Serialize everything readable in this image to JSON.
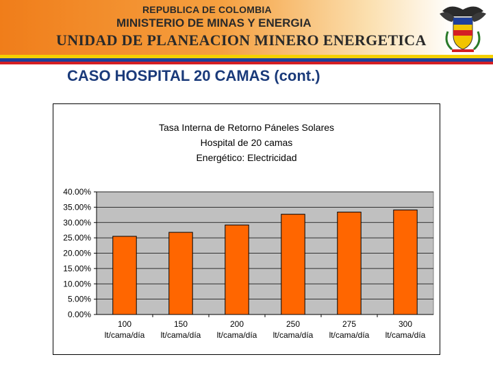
{
  "header": {
    "line1": "REPUBLICA DE COLOMBIA",
    "line2": "MINISTERIO DE MINAS Y ENERGIA",
    "line3": "UNIDAD DE PLANEACION MINERO ENERGETICA"
  },
  "slide": {
    "title": "CASO HOSPITAL 20 CAMAS (cont.)"
  },
  "colors": {
    "bar_fill": "#ff6600",
    "plot_bg": "#c0c0c0",
    "title_blue": "#1a3a7a"
  },
  "chart_data": {
    "type": "bar",
    "title_lines": [
      "Tasa Interna de Retorno Páneles Solares",
      "Hospital de 20 camas",
      "Energético: Electricidad"
    ],
    "categories": [
      [
        "100",
        "lt/cama/día"
      ],
      [
        "150",
        "lt/cama/día"
      ],
      [
        "200",
        "lt/cama/día"
      ],
      [
        "250",
        "lt/cama/día"
      ],
      [
        "275",
        "lt/cama/día"
      ],
      [
        "300",
        "lt/cama/día"
      ]
    ],
    "values": [
      0.255,
      0.268,
      0.292,
      0.327,
      0.334,
      0.341
    ],
    "ylim": [
      0,
      0.4
    ],
    "yticks": [
      "0.00%",
      "5.00%",
      "10.00%",
      "15.00%",
      "20.00%",
      "25.00%",
      "30.00%",
      "35.00%",
      "40.00%"
    ],
    "grid": true,
    "legend": "none"
  }
}
